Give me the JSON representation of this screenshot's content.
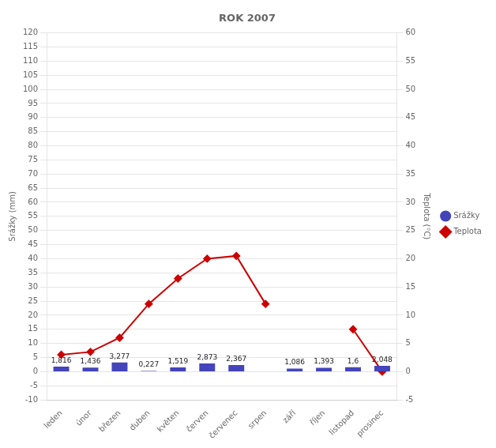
{
  "chart_data": {
    "type": "bar",
    "title": "ROK 2007",
    "categories": [
      "leden",
      "únor",
      "březen",
      "duben",
      "květen",
      "červen",
      "červenec",
      "srpen",
      "září",
      "říjen",
      "listopad",
      "prosinec"
    ],
    "series": [
      {
        "name": "Srážky",
        "type": "bar",
        "color": "#4444bb",
        "values": [
          1.816,
          1.436,
          3.277,
          0.227,
          1.519,
          2.873,
          2.367,
          0,
          1.086,
          1.393,
          1.6,
          2.048
        ],
        "value_labels": [
          "1,816",
          "1,436",
          "3,277",
          "0,227",
          "1,519",
          "2,873",
          "2,367",
          null,
          "1,086",
          "1,393",
          "1,6",
          "2,048"
        ],
        "data_labels": true
      },
      {
        "name": "Teplota",
        "type": "line",
        "axis": "y2",
        "color": "#cc0000",
        "marker": "diamond",
        "values": [
          3.0,
          3.5,
          6.0,
          12.0,
          16.5,
          20.0,
          20.5,
          12.0,
          null,
          null,
          7.5,
          0.0
        ]
      }
    ],
    "ylabel": "Srážky (mm)",
    "y2label": "Teplota (°C)",
    "ylim": [
      -10,
      120
    ],
    "yticks": [
      -10,
      -5,
      0,
      5,
      10,
      15,
      20,
      25,
      30,
      35,
      40,
      45,
      50,
      55,
      60,
      65,
      70,
      75,
      80,
      85,
      90,
      95,
      100,
      105,
      110,
      115,
      120
    ],
    "y2lim": [
      -5,
      60
    ],
    "y2ticks": [
      -5,
      0,
      5,
      10,
      15,
      20,
      25,
      30,
      35,
      40,
      45,
      50,
      55,
      60
    ],
    "grid": true,
    "legend": "right"
  }
}
